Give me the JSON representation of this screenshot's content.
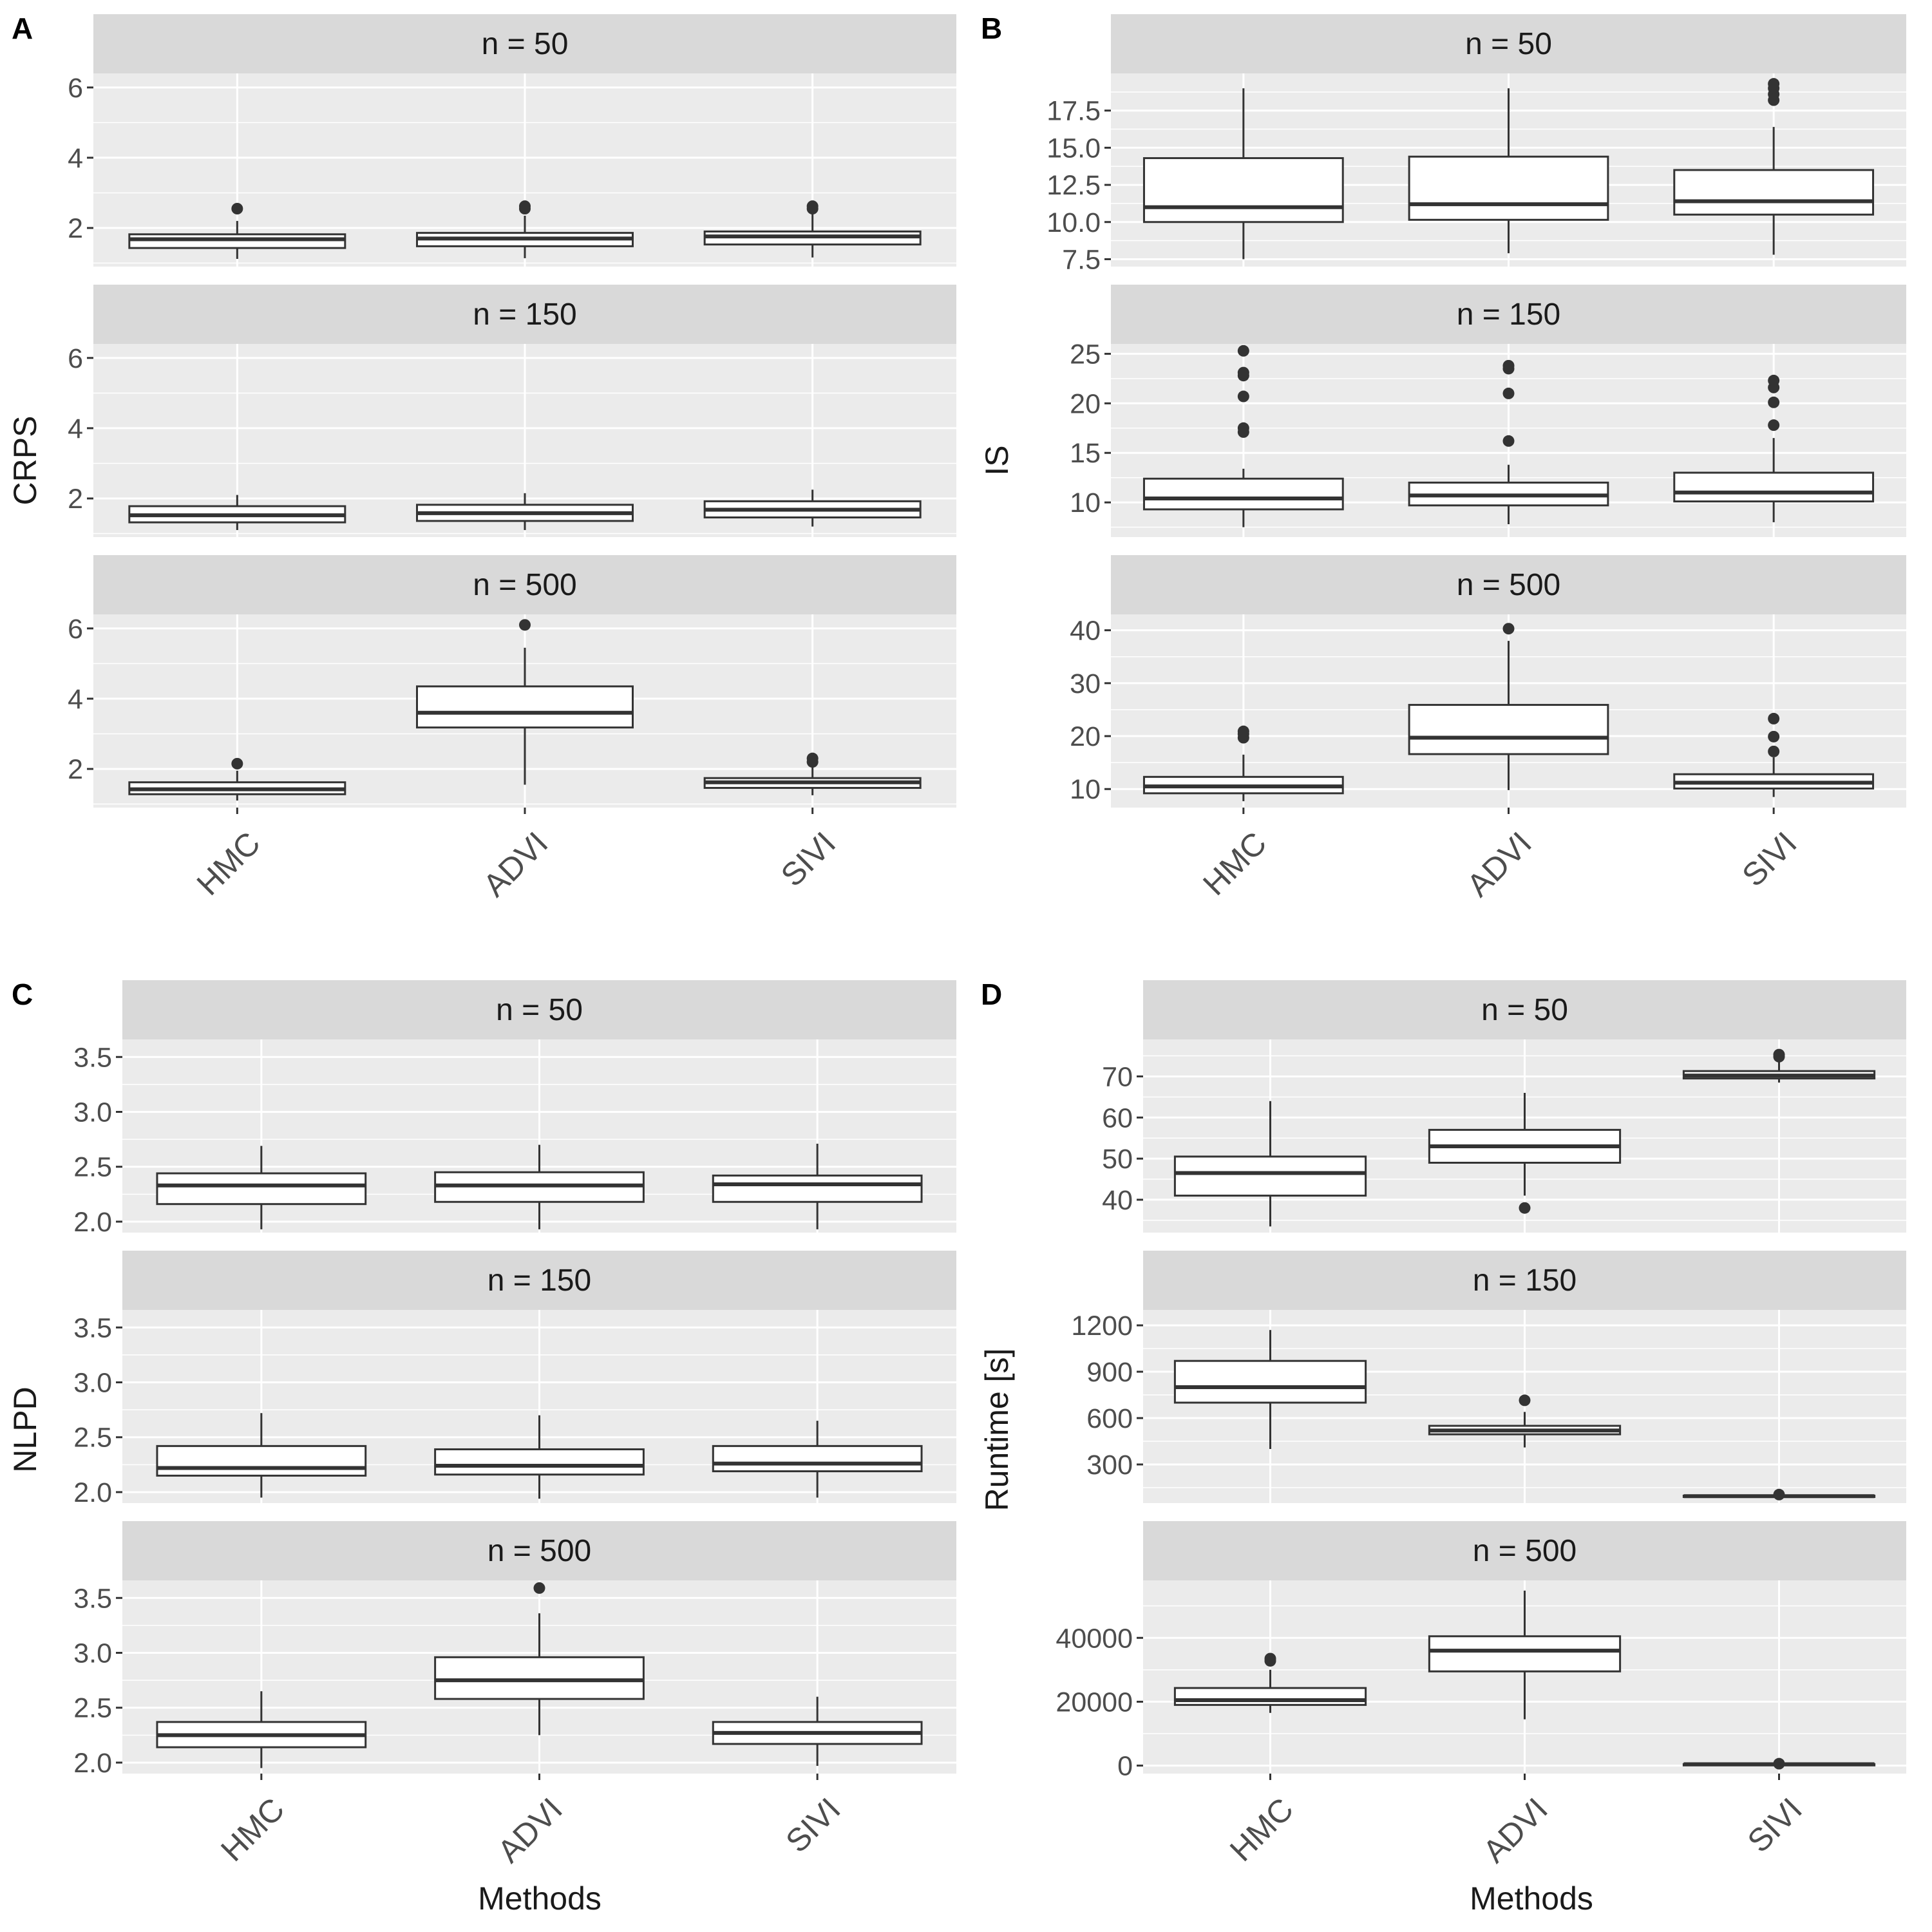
{
  "figure": {
    "methods": [
      "HMC",
      "ADVI",
      "SIVI"
    ],
    "facet_prefix": "n = ",
    "colors": {
      "panel_bg": "#ebebeb",
      "strip_bg": "#d9d9d9",
      "grid": "#ffffff",
      "box_line": "#333333",
      "box_fill": "#ffffff",
      "text": "#1a1a1a",
      "tick_text": "#4d4d4d"
    }
  },
  "chart_data": [
    {
      "panel": "A",
      "type": "boxplot",
      "ylabel": "CRPS",
      "xlabel": "",
      "facets": [
        {
          "n": "50",
          "ylim": [
            0.9,
            6.4
          ],
          "yticks": [
            2,
            4,
            6
          ],
          "ytick_labels": [
            "2",
            "4",
            "6"
          ],
          "boxes": [
            {
              "method": "HMC",
              "min": 1.12,
              "q1": 1.43,
              "median": 1.68,
              "q3": 1.82,
              "max": 2.2,
              "outliers": [
                2.55
              ]
            },
            {
              "method": "ADVI",
              "min": 1.14,
              "q1": 1.48,
              "median": 1.7,
              "q3": 1.86,
              "max": 2.35,
              "outliers": [
                2.55,
                2.62
              ]
            },
            {
              "method": "SIVI",
              "min": 1.16,
              "q1": 1.53,
              "median": 1.76,
              "q3": 1.9,
              "max": 2.4,
              "outliers": [
                2.55,
                2.62
              ]
            }
          ]
        },
        {
          "n": "150",
          "ylim": [
            0.9,
            6.4
          ],
          "yticks": [
            2,
            4,
            6
          ],
          "ytick_labels": [
            "2",
            "4",
            "6"
          ],
          "boxes": [
            {
              "method": "HMC",
              "min": 1.1,
              "q1": 1.32,
              "median": 1.52,
              "q3": 1.78,
              "max": 2.1,
              "outliers": []
            },
            {
              "method": "ADVI",
              "min": 1.1,
              "q1": 1.36,
              "median": 1.58,
              "q3": 1.82,
              "max": 2.15,
              "outliers": []
            },
            {
              "method": "SIVI",
              "min": 1.2,
              "q1": 1.46,
              "median": 1.68,
              "q3": 1.92,
              "max": 2.25,
              "outliers": []
            }
          ]
        },
        {
          "n": "500",
          "ylim": [
            0.9,
            6.4
          ],
          "yticks": [
            2,
            4,
            6
          ],
          "ytick_labels": [
            "2",
            "4",
            "6"
          ],
          "boxes": [
            {
              "method": "HMC",
              "min": 1.1,
              "q1": 1.28,
              "median": 1.42,
              "q3": 1.62,
              "max": 1.95,
              "outliers": [
                2.15
              ]
            },
            {
              "method": "ADVI",
              "min": 1.55,
              "q1": 3.18,
              "median": 3.6,
              "q3": 4.35,
              "max": 5.45,
              "outliers": [
                6.1
              ]
            },
            {
              "method": "SIVI",
              "min": 1.25,
              "q1": 1.46,
              "median": 1.62,
              "q3": 1.74,
              "max": 2.05,
              "outliers": [
                2.2,
                2.3
              ]
            }
          ]
        }
      ]
    },
    {
      "panel": "B",
      "type": "boxplot",
      "ylabel": "IS",
      "xlabel": "",
      "facets": [
        {
          "n": "50",
          "ylim": [
            7.0,
            20.0
          ],
          "yticks": [
            7.5,
            10.0,
            12.5,
            15.0,
            17.5
          ],
          "ytick_labels": [
            "7.5",
            "10.0",
            "12.5",
            "15.0",
            "17.5"
          ],
          "boxes": [
            {
              "method": "HMC",
              "min": 7.5,
              "q1": 10.0,
              "median": 11.0,
              "q3": 14.3,
              "max": 19.0,
              "outliers": []
            },
            {
              "method": "ADVI",
              "min": 7.9,
              "q1": 10.15,
              "median": 11.2,
              "q3": 14.4,
              "max": 19.0,
              "outliers": []
            },
            {
              "method": "SIVI",
              "min": 7.8,
              "q1": 10.5,
              "median": 11.4,
              "q3": 13.5,
              "max": 16.4,
              "outliers": [
                18.2,
                18.6,
                19.0,
                19.3
              ]
            }
          ]
        },
        {
          "n": "150",
          "ylim": [
            6.5,
            26.0
          ],
          "yticks": [
            10,
            15,
            20,
            25
          ],
          "ytick_labels": [
            "10",
            "15",
            "20",
            "25"
          ],
          "boxes": [
            {
              "method": "HMC",
              "min": 7.5,
              "q1": 9.3,
              "median": 10.4,
              "q3": 12.4,
              "max": 13.4,
              "outliers": [
                17.1,
                17.5,
                20.7,
                22.8,
                23.1,
                25.3
              ]
            },
            {
              "method": "ADVI",
              "min": 7.8,
              "q1": 9.7,
              "median": 10.7,
              "q3": 12.0,
              "max": 13.8,
              "outliers": [
                16.2,
                21.0,
                23.5,
                23.8
              ]
            },
            {
              "method": "SIVI",
              "min": 8.0,
              "q1": 10.1,
              "median": 11.0,
              "q3": 13.0,
              "max": 16.5,
              "outliers": [
                17.8,
                20.1,
                21.6,
                22.3
              ]
            }
          ]
        },
        {
          "n": "500",
          "ylim": [
            6.5,
            43.0
          ],
          "yticks": [
            10,
            20,
            30,
            40
          ],
          "ytick_labels": [
            "10",
            "20",
            "30",
            "40"
          ],
          "boxes": [
            {
              "method": "HMC",
              "min": 7.7,
              "q1": 9.2,
              "median": 10.5,
              "q3": 12.3,
              "max": 16.5,
              "outliers": [
                19.7,
                20.4,
                20.9
              ]
            },
            {
              "method": "ADVI",
              "min": 9.8,
              "q1": 16.6,
              "median": 19.7,
              "q3": 25.9,
              "max": 38.0,
              "outliers": [
                40.3
              ]
            },
            {
              "method": "SIVI",
              "min": 8.5,
              "q1": 10.1,
              "median": 11.2,
              "q3": 12.8,
              "max": 16.0,
              "outliers": [
                17.1,
                19.9,
                23.3
              ]
            }
          ]
        }
      ]
    },
    {
      "panel": "C",
      "type": "boxplot",
      "ylabel": "NLPD",
      "xlabel": "Methods",
      "facets": [
        {
          "n": "50",
          "ylim": [
            1.9,
            3.66
          ],
          "yticks": [
            2.0,
            2.5,
            3.0,
            3.5
          ],
          "ytick_labels": [
            "2.0",
            "2.5",
            "3.0",
            "3.5"
          ],
          "boxes": [
            {
              "method": "HMC",
              "min": 1.93,
              "q1": 2.16,
              "median": 2.33,
              "q3": 2.44,
              "max": 2.69,
              "outliers": []
            },
            {
              "method": "ADVI",
              "min": 1.93,
              "q1": 2.18,
              "median": 2.33,
              "q3": 2.45,
              "max": 2.7,
              "outliers": []
            },
            {
              "method": "SIVI",
              "min": 1.93,
              "q1": 2.18,
              "median": 2.34,
              "q3": 2.42,
              "max": 2.71,
              "outliers": []
            }
          ]
        },
        {
          "n": "150",
          "ylim": [
            1.9,
            3.66
          ],
          "yticks": [
            2.0,
            2.5,
            3.0,
            3.5
          ],
          "ytick_labels": [
            "2.0",
            "2.5",
            "3.0",
            "3.5"
          ],
          "boxes": [
            {
              "method": "HMC",
              "min": 1.95,
              "q1": 2.15,
              "median": 2.22,
              "q3": 2.42,
              "max": 2.72,
              "outliers": []
            },
            {
              "method": "ADVI",
              "min": 1.94,
              "q1": 2.16,
              "median": 2.24,
              "q3": 2.39,
              "max": 2.7,
              "outliers": []
            },
            {
              "method": "SIVI",
              "min": 1.95,
              "q1": 2.19,
              "median": 2.26,
              "q3": 2.42,
              "max": 2.65,
              "outliers": []
            }
          ]
        },
        {
          "n": "500",
          "ylim": [
            1.9,
            3.66
          ],
          "yticks": [
            2.0,
            2.5,
            3.0,
            3.5
          ],
          "ytick_labels": [
            "2.0",
            "2.5",
            "3.0",
            "3.5"
          ],
          "boxes": [
            {
              "method": "HMC",
              "min": 1.95,
              "q1": 2.14,
              "median": 2.25,
              "q3": 2.37,
              "max": 2.65,
              "outliers": []
            },
            {
              "method": "ADVI",
              "min": 2.25,
              "q1": 2.58,
              "median": 2.75,
              "q3": 2.96,
              "max": 3.36,
              "outliers": [
                3.59
              ]
            },
            {
              "method": "SIVI",
              "min": 1.97,
              "q1": 2.17,
              "median": 2.27,
              "q3": 2.37,
              "max": 2.6,
              "outliers": []
            }
          ]
        }
      ]
    },
    {
      "panel": "D",
      "type": "boxplot",
      "ylabel": "Runtime [s]",
      "xlabel": "Methods",
      "facets": [
        {
          "n": "50",
          "ylim": [
            32,
            79
          ],
          "yticks": [
            40,
            50,
            60,
            70
          ],
          "ytick_labels": [
            "40",
            "50",
            "60",
            "70"
          ],
          "boxes": [
            {
              "method": "HMC",
              "min": 33.5,
              "q1": 41.0,
              "median": 46.5,
              "q3": 50.5,
              "max": 64.0,
              "outliers": []
            },
            {
              "method": "ADVI",
              "min": 41.0,
              "q1": 49.0,
              "median": 53.0,
              "q3": 57.0,
              "max": 66.0,
              "outliers": [
                38.0
              ]
            },
            {
              "method": "SIVI",
              "min": 68.5,
              "q1": 69.5,
              "median": 70.2,
              "q3": 71.3,
              "max": 73.5,
              "outliers": [
                74.8,
                75.3
              ]
            }
          ]
        },
        {
          "n": "150",
          "ylim": [
            50,
            1300
          ],
          "yticks": [
            300,
            600,
            900,
            1200
          ],
          "ytick_labels": [
            "300",
            "600",
            "900",
            "1200"
          ],
          "boxes": [
            {
              "method": "HMC",
              "min": 400,
              "q1": 700,
              "median": 800,
              "q3": 970,
              "max": 1170,
              "outliers": []
            },
            {
              "method": "ADVI",
              "min": 410,
              "q1": 495,
              "median": 520,
              "q3": 550,
              "max": 640,
              "outliers": [
                715
              ]
            },
            {
              "method": "SIVI",
              "min": 88,
              "q1": 92,
              "median": 95,
              "q3": 98,
              "max": 102,
              "outliers": [
                105
              ]
            }
          ]
        },
        {
          "n": "500",
          "ylim": [
            -2500,
            58000
          ],
          "yticks": [
            0,
            20000,
            40000
          ],
          "ytick_labels": [
            "0",
            "20000",
            "40000"
          ],
          "boxes": [
            {
              "method": "HMC",
              "min": 16500,
              "q1": 19000,
              "median": 20500,
              "q3": 24300,
              "max": 30000,
              "outliers": [
                32800,
                33500
              ]
            },
            {
              "method": "ADVI",
              "min": 14500,
              "q1": 29500,
              "median": 36000,
              "q3": 40500,
              "max": 54800,
              "outliers": []
            },
            {
              "method": "SIVI",
              "min": 300,
              "q1": 380,
              "median": 420,
              "q3": 460,
              "max": 520,
              "outliers": [
                600
              ]
            }
          ]
        }
      ]
    }
  ]
}
